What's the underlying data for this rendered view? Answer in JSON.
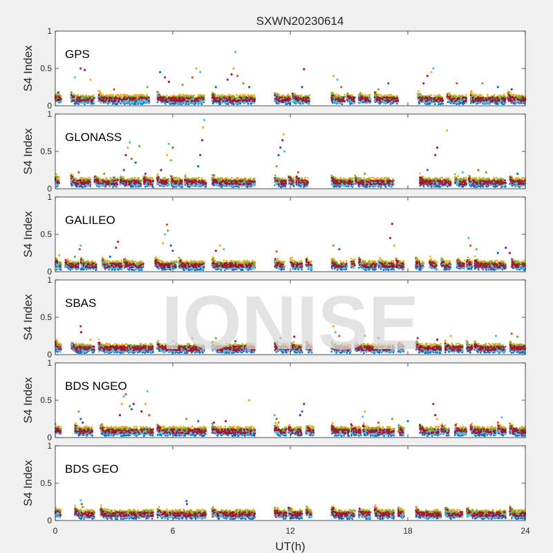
{
  "chart_data": {
    "type": "scatter",
    "title": "SXWN20230614",
    "watermark": "IONISE",
    "xlabel": "UT(h)",
    "ylabel": "S4 Index",
    "xlim": [
      0,
      24
    ],
    "xticks": [
      "0",
      "6",
      "12",
      "18",
      "24"
    ],
    "ylim": [
      0,
      1
    ],
    "yticks": [
      "0",
      "0.5",
      "1"
    ],
    "grid": false,
    "colors": [
      "#0072BD",
      "#D95319",
      "#EDB120",
      "#7E2F8E",
      "#77AC30",
      "#4DBEEE",
      "#A2142F"
    ],
    "panels": [
      {
        "name": "GPS",
        "segments": [
          [
            0.0,
            0.3
          ],
          [
            0.8,
            2.0
          ],
          [
            2.2,
            4.8
          ],
          [
            5.2,
            7.6
          ],
          [
            8.0,
            10.2
          ],
          [
            11.2,
            12.0
          ],
          [
            12.1,
            13.0
          ],
          [
            14.1,
            14.8
          ],
          [
            14.9,
            15.3
          ],
          [
            15.5,
            16.1
          ],
          [
            16.3,
            17.5
          ],
          [
            18.5,
            19.8
          ],
          [
            20.0,
            21.0
          ],
          [
            21.2,
            23.0
          ],
          [
            23.1,
            24.0
          ]
        ],
        "points": [
          [
            0.15,
            0.18
          ],
          [
            1.3,
            0.5
          ],
          [
            1.5,
            0.48
          ],
          [
            1.8,
            0.35
          ],
          [
            1.0,
            0.38
          ],
          [
            3.0,
            0.22
          ],
          [
            4.7,
            0.25
          ],
          [
            5.35,
            0.45
          ],
          [
            5.6,
            0.38
          ],
          [
            5.8,
            0.32
          ],
          [
            7.2,
            0.5
          ],
          [
            7.4,
            0.45
          ],
          [
            7.0,
            0.38
          ],
          [
            6.5,
            0.28
          ],
          [
            8.2,
            0.25
          ],
          [
            8.8,
            0.35
          ],
          [
            9.0,
            0.42
          ],
          [
            9.1,
            0.5
          ],
          [
            9.2,
            0.72
          ],
          [
            9.3,
            0.4
          ],
          [
            9.6,
            0.3
          ],
          [
            9.9,
            0.25
          ],
          [
            12.6,
            0.25
          ],
          [
            12.7,
            0.49
          ],
          [
            14.2,
            0.4
          ],
          [
            14.4,
            0.35
          ],
          [
            14.6,
            0.25
          ],
          [
            16.5,
            0.22
          ],
          [
            17.0,
            0.3
          ],
          [
            18.8,
            0.3
          ],
          [
            19.0,
            0.4
          ],
          [
            19.2,
            0.45
          ],
          [
            19.3,
            0.5
          ],
          [
            20.5,
            0.3
          ],
          [
            21.8,
            0.3
          ],
          [
            22.6,
            0.25
          ],
          [
            23.3,
            0.22
          ]
        ]
      },
      {
        "name": "GLONASS",
        "segments": [
          [
            0.0,
            0.2
          ],
          [
            0.8,
            1.8
          ],
          [
            2.0,
            3.2
          ],
          [
            3.3,
            4.4
          ],
          [
            4.5,
            5.0
          ],
          [
            5.2,
            5.8
          ],
          [
            5.9,
            6.5
          ],
          [
            6.6,
            7.7
          ],
          [
            8.0,
            10.2
          ],
          [
            11.2,
            11.8
          ],
          [
            11.9,
            12.2
          ],
          [
            12.3,
            12.9
          ],
          [
            14.1,
            15.2
          ],
          [
            15.3,
            17.3
          ],
          [
            18.6,
            20.2
          ],
          [
            20.4,
            21.0
          ],
          [
            21.1,
            23.0
          ],
          [
            23.2,
            24.0
          ]
        ],
        "points": [
          [
            1.2,
            0.22
          ],
          [
            2.5,
            0.2
          ],
          [
            3.0,
            0.15
          ],
          [
            3.5,
            0.25
          ],
          [
            3.6,
            0.45
          ],
          [
            3.7,
            0.55
          ],
          [
            3.8,
            0.62
          ],
          [
            3.9,
            0.4
          ],
          [
            4.3,
            0.57
          ],
          [
            4.1,
            0.35
          ],
          [
            4.6,
            0.2
          ],
          [
            5.4,
            0.25
          ],
          [
            5.7,
            0.45
          ],
          [
            5.8,
            0.6
          ],
          [
            6.0,
            0.55
          ],
          [
            5.9,
            0.38
          ],
          [
            7.3,
            0.3
          ],
          [
            7.4,
            0.45
          ],
          [
            7.5,
            0.65
          ],
          [
            7.55,
            0.82
          ],
          [
            7.6,
            0.92
          ],
          [
            8.1,
            0.18
          ],
          [
            11.3,
            0.3
          ],
          [
            11.4,
            0.45
          ],
          [
            11.5,
            0.55
          ],
          [
            11.6,
            0.65
          ],
          [
            11.65,
            0.73
          ],
          [
            11.7,
            0.5
          ],
          [
            12.4,
            0.22
          ],
          [
            15.8,
            0.2
          ],
          [
            19.0,
            0.25
          ],
          [
            19.4,
            0.45
          ],
          [
            19.5,
            0.55
          ],
          [
            20.0,
            0.78
          ],
          [
            20.8,
            0.22
          ],
          [
            21.6,
            0.25
          ],
          [
            22.0,
            0.22
          ],
          [
            23.6,
            0.2
          ]
        ]
      },
      {
        "name": "GALILEO",
        "segments": [
          [
            0.0,
            0.3
          ],
          [
            0.5,
            1.2
          ],
          [
            1.3,
            2.1
          ],
          [
            2.4,
            3.4
          ],
          [
            3.5,
            4.5
          ],
          [
            5.1,
            6.2
          ],
          [
            6.3,
            7.6
          ],
          [
            8.0,
            10.2
          ],
          [
            11.2,
            11.7
          ],
          [
            12.0,
            12.6
          ],
          [
            12.8,
            13.1
          ],
          [
            14.1,
            14.9
          ],
          [
            15.1,
            15.3
          ],
          [
            15.5,
            16.4
          ],
          [
            16.5,
            17.3
          ],
          [
            17.4,
            17.8
          ],
          [
            18.4,
            18.8
          ],
          [
            19.1,
            19.5
          ],
          [
            19.7,
            20.2
          ],
          [
            20.5,
            20.9
          ],
          [
            21.0,
            21.3
          ],
          [
            21.4,
            23.0
          ],
          [
            23.3,
            24.0
          ]
        ],
        "points": [
          [
            0.2,
            0.22
          ],
          [
            1.3,
            0.35
          ],
          [
            1.25,
            0.3
          ],
          [
            1.0,
            0.2
          ],
          [
            2.8,
            0.2
          ],
          [
            3.1,
            0.32
          ],
          [
            3.2,
            0.4
          ],
          [
            5.5,
            0.38
          ],
          [
            5.6,
            0.5
          ],
          [
            5.7,
            0.63
          ],
          [
            5.75,
            0.55
          ],
          [
            5.9,
            0.35
          ],
          [
            6.0,
            0.28
          ],
          [
            8.2,
            0.28
          ],
          [
            8.4,
            0.35
          ],
          [
            8.6,
            0.3
          ],
          [
            11.3,
            0.27
          ],
          [
            14.2,
            0.35
          ],
          [
            14.5,
            0.3
          ],
          [
            17.1,
            0.45
          ],
          [
            17.2,
            0.64
          ],
          [
            17.3,
            0.35
          ],
          [
            21.1,
            0.45
          ],
          [
            21.2,
            0.35
          ],
          [
            21.5,
            0.3
          ],
          [
            22.6,
            0.25
          ],
          [
            23.0,
            0.32
          ],
          [
            23.2,
            0.25
          ]
        ]
      },
      {
        "name": "SBAS",
        "segments": [
          [
            0.0,
            0.3
          ],
          [
            0.8,
            2.0
          ],
          [
            2.2,
            5.0
          ],
          [
            5.2,
            7.6
          ],
          [
            8.0,
            10.2
          ],
          [
            11.2,
            11.9
          ],
          [
            12.0,
            12.6
          ],
          [
            12.8,
            13.1
          ],
          [
            14.1,
            15.1
          ],
          [
            15.3,
            17.3
          ],
          [
            17.5,
            17.8
          ],
          [
            18.4,
            19.7
          ],
          [
            19.9,
            20.8
          ],
          [
            21.0,
            21.3
          ],
          [
            21.4,
            23.0
          ],
          [
            23.2,
            24.0
          ]
        ],
        "points": [
          [
            1.3,
            0.38
          ],
          [
            1.32,
            0.3
          ],
          [
            1.8,
            0.2
          ],
          [
            6.0,
            0.18
          ],
          [
            7.0,
            0.22
          ],
          [
            8.2,
            0.22
          ],
          [
            9.2,
            0.18
          ],
          [
            11.5,
            0.22
          ],
          [
            12.2,
            0.24
          ],
          [
            14.2,
            0.38
          ],
          [
            14.3,
            0.3
          ],
          [
            14.5,
            0.25
          ],
          [
            15.8,
            0.25
          ],
          [
            16.5,
            0.22
          ],
          [
            18.5,
            0.22
          ],
          [
            19.5,
            0.2
          ],
          [
            20.2,
            0.25
          ],
          [
            22.5,
            0.25
          ],
          [
            23.3,
            0.28
          ],
          [
            23.6,
            0.24
          ]
        ]
      },
      {
        "name": "BDS NGEO",
        "segments": [
          [
            0.0,
            0.3
          ],
          [
            1.0,
            1.9
          ],
          [
            2.3,
            5.0
          ],
          [
            5.2,
            7.7
          ],
          [
            8.0,
            10.2
          ],
          [
            11.2,
            11.8
          ],
          [
            11.9,
            12.6
          ],
          [
            12.8,
            13.2
          ],
          [
            14.1,
            15.0
          ],
          [
            15.1,
            15.6
          ],
          [
            15.7,
            17.3
          ],
          [
            17.5,
            17.8
          ],
          [
            18.6,
            19.6
          ],
          [
            19.7,
            20.1
          ],
          [
            20.4,
            21.0
          ],
          [
            21.2,
            22.5
          ],
          [
            22.6,
            23.0
          ],
          [
            23.2,
            24.0
          ]
        ],
        "points": [
          [
            1.2,
            0.35
          ],
          [
            1.3,
            0.25
          ],
          [
            1.4,
            0.2
          ],
          [
            3.3,
            0.3
          ],
          [
            3.4,
            0.45
          ],
          [
            3.5,
            0.55
          ],
          [
            3.6,
            0.58
          ],
          [
            3.8,
            0.42
          ],
          [
            3.9,
            0.38
          ],
          [
            4.0,
            0.45
          ],
          [
            4.4,
            0.35
          ],
          [
            4.6,
            0.45
          ],
          [
            4.7,
            0.62
          ],
          [
            4.8,
            0.3
          ],
          [
            6.7,
            0.25
          ],
          [
            7.3,
            0.22
          ],
          [
            8.1,
            0.2
          ],
          [
            8.7,
            0.22
          ],
          [
            9.9,
            0.5
          ],
          [
            11.2,
            0.3
          ],
          [
            11.3,
            0.25
          ],
          [
            11.4,
            0.2
          ],
          [
            12.6,
            0.35
          ],
          [
            12.7,
            0.45
          ],
          [
            12.5,
            0.3
          ],
          [
            15.8,
            0.35
          ],
          [
            15.7,
            0.28
          ],
          [
            16.5,
            0.2
          ],
          [
            17.2,
            0.25
          ],
          [
            18.0,
            0.22
          ],
          [
            19.3,
            0.45
          ],
          [
            19.4,
            0.3
          ],
          [
            19.5,
            0.25
          ],
          [
            22.8,
            0.27
          ],
          [
            22.6,
            0.2
          ]
        ]
      },
      {
        "name": "BDS GEO",
        "segments": [
          [
            0.0,
            0.3
          ],
          [
            1.0,
            2.0
          ],
          [
            2.3,
            5.0
          ],
          [
            5.2,
            7.7
          ],
          [
            8.0,
            10.2
          ],
          [
            11.2,
            11.8
          ],
          [
            11.9,
            12.6
          ],
          [
            12.8,
            13.1
          ],
          [
            14.1,
            15.3
          ],
          [
            15.5,
            16.1
          ],
          [
            16.3,
            17.3
          ],
          [
            17.5,
            17.8
          ],
          [
            18.4,
            19.7
          ],
          [
            19.9,
            20.8
          ],
          [
            21.0,
            23.0
          ],
          [
            23.2,
            24.0
          ]
        ],
        "points": [
          [
            1.3,
            0.27
          ],
          [
            1.35,
            0.22
          ],
          [
            1.4,
            0.18
          ],
          [
            6.7,
            0.26
          ],
          [
            6.72,
            0.22
          ],
          [
            14.2,
            0.17
          ],
          [
            14.3,
            0.14
          ],
          [
            20.2,
            0.12
          ]
        ]
      }
    ]
  }
}
